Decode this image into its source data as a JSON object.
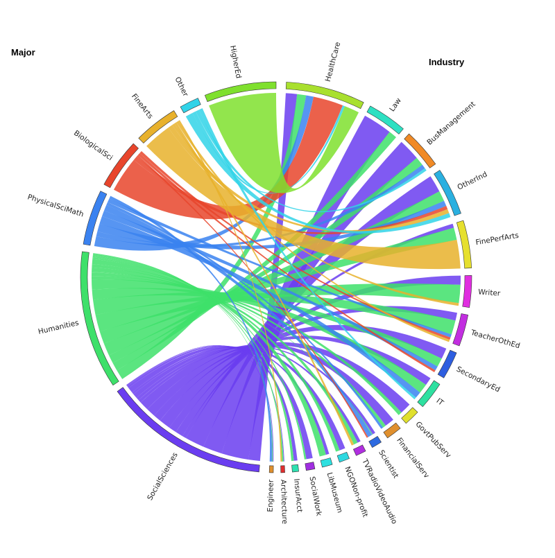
{
  "chart_data": {
    "type": "chord",
    "group_titles": {
      "left": "Major",
      "right": "Industry"
    },
    "majors": [
      {
        "name": "SocialSciences",
        "color": "#6a3df0",
        "size": 30
      },
      {
        "name": "Humanities",
        "color": "#3ee06a",
        "size": 25
      },
      {
        "name": "PhysicalSciMath",
        "color": "#3a82f0",
        "size": 10
      },
      {
        "name": "BiologicalSci",
        "color": "#e8452c",
        "size": 9
      },
      {
        "name": "FineArts",
        "color": "#e8b12c",
        "size": 8
      },
      {
        "name": "Other",
        "color": "#31d3e8",
        "size": 3.5
      },
      {
        "name": "HigherEd",
        "color": "#7fe02e",
        "size": 13
      }
    ],
    "industries": [
      {
        "name": "HealthCare",
        "color": "#a9e02e",
        "size": 10
      },
      {
        "name": "Law",
        "color": "#2ee0c2",
        "size": 5
      },
      {
        "name": "BusManagement",
        "color": "#f08a26",
        "size": 5
      },
      {
        "name": "OtherInd",
        "color": "#2ab0e0",
        "size": 6
      },
      {
        "name": "FinePerfArts",
        "color": "#e6e02e",
        "size": 6
      },
      {
        "name": "Writer",
        "color": "#e02ee0",
        "size": 4
      },
      {
        "name": "TeacherOthEd",
        "color": "#c22ee0",
        "size": 4
      },
      {
        "name": "SecondaryEd",
        "color": "#2e5ee0",
        "size": 3.5
      },
      {
        "name": "IT",
        "color": "#2ee0a0",
        "size": 3.5
      },
      {
        "name": "GovtPubServ",
        "color": "#e0e02e",
        "size": 2
      },
      {
        "name": "FinancialServ",
        "color": "#e0902e",
        "size": 2
      },
      {
        "name": "Scientist",
        "color": "#2e6ae0",
        "size": 1.3
      },
      {
        "name": "TVRadioVideoAudio",
        "color": "#b02ee0",
        "size": 1.3
      },
      {
        "name": "NGONon-profit",
        "color": "#2ed8e0",
        "size": 1.3
      },
      {
        "name": "LibMuseum",
        "color": "#2ee0e0",
        "size": 1.3
      },
      {
        "name": "SocialWork",
        "color": "#a02ee0",
        "size": 1.1
      },
      {
        "name": "InsurAcct",
        "color": "#2ee0b0",
        "size": 0.8
      },
      {
        "name": "Architecture",
        "color": "#e02e2e",
        "size": 0.5
      },
      {
        "name": "Engineer",
        "color": "#e0902e",
        "size": 0.5
      }
    ],
    "flows": [
      [
        "SocialSciences",
        "HealthCare",
        1.5
      ],
      [
        "SocialSciences",
        "Law",
        3.5
      ],
      [
        "SocialSciences",
        "BusManagement",
        2.5
      ],
      [
        "SocialSciences",
        "OtherInd",
        2.5
      ],
      [
        "SocialSciences",
        "FinePerfArts",
        0.5
      ],
      [
        "SocialSciences",
        "Writer",
        1
      ],
      [
        "SocialSciences",
        "TeacherOthEd",
        1
      ],
      [
        "SocialSciences",
        "SecondaryEd",
        1.5
      ],
      [
        "SocialSciences",
        "IT",
        1
      ],
      [
        "SocialSciences",
        "GovtPubServ",
        1.2
      ],
      [
        "SocialSciences",
        "FinancialServ",
        1.2
      ],
      [
        "SocialSciences",
        "Scientist",
        0.4
      ],
      [
        "SocialSciences",
        "TVRadioVideoAudio",
        0.4
      ],
      [
        "SocialSciences",
        "NGONon-profit",
        0.6
      ],
      [
        "SocialSciences",
        "LibMuseum",
        0.3
      ],
      [
        "SocialSciences",
        "SocialWork",
        0.7
      ],
      [
        "SocialSciences",
        "InsurAcct",
        0.3
      ],
      [
        "SocialSciences",
        "Architecture",
        0.1
      ],
      [
        "SocialSciences",
        "Engineer",
        0.1
      ],
      [
        "Humanities",
        "HealthCare",
        1.2
      ],
      [
        "Humanities",
        "Law",
        1
      ],
      [
        "Humanities",
        "BusManagement",
        1
      ],
      [
        "Humanities",
        "OtherInd",
        1.5
      ],
      [
        "Humanities",
        "FinePerfArts",
        1.5
      ],
      [
        "Humanities",
        "Writer",
        2
      ],
      [
        "Humanities",
        "TeacherOthEd",
        1.8
      ],
      [
        "Humanities",
        "SecondaryEd",
        1.2
      ],
      [
        "Humanities",
        "IT",
        1.2
      ],
      [
        "Humanities",
        "GovtPubServ",
        0.4
      ],
      [
        "Humanities",
        "FinancialServ",
        0.4
      ],
      [
        "Humanities",
        "Scientist",
        0.1
      ],
      [
        "Humanities",
        "TVRadioVideoAudio",
        0.5
      ],
      [
        "Humanities",
        "NGONon-profit",
        0.4
      ],
      [
        "Humanities",
        "LibMuseum",
        0.6
      ],
      [
        "Humanities",
        "SocialWork",
        0.2
      ],
      [
        "Humanities",
        "InsurAcct",
        0.2
      ],
      [
        "Humanities",
        "Architecture",
        0.2
      ],
      [
        "Humanities",
        "Engineer",
        0.1
      ],
      [
        "PhysicalSciMath",
        "HealthCare",
        1
      ],
      [
        "PhysicalSciMath",
        "BusManagement",
        0.5
      ],
      [
        "PhysicalSciMath",
        "OtherInd",
        0.8
      ],
      [
        "PhysicalSciMath",
        "IT",
        0.8
      ],
      [
        "PhysicalSciMath",
        "SecondaryEd",
        0.6
      ],
      [
        "PhysicalSciMath",
        "Scientist",
        0.6
      ],
      [
        "PhysicalSciMath",
        "FinancialServ",
        0.3
      ],
      [
        "PhysicalSciMath",
        "TeacherOthEd",
        0.4
      ],
      [
        "PhysicalSciMath",
        "Engineer",
        0.3
      ],
      [
        "BiologicalSci",
        "HealthCare",
        4
      ],
      [
        "BiologicalSci",
        "OtherInd",
        0.5
      ],
      [
        "BiologicalSci",
        "Scientist",
        0.2
      ],
      [
        "BiologicalSci",
        "SecondaryEd",
        0.3
      ],
      [
        "BiologicalSci",
        "TeacherOthEd",
        0.3
      ],
      [
        "FineArts",
        "FinePerfArts",
        3.5
      ],
      [
        "FineArts",
        "OtherInd",
        0.6
      ],
      [
        "FineArts",
        "Writer",
        0.3
      ],
      [
        "FineArts",
        "TVRadioVideoAudio",
        0.3
      ],
      [
        "FineArts",
        "TeacherOthEd",
        0.3
      ],
      [
        "FineArts",
        "Architecture",
        0.2
      ],
      [
        "Other",
        "OtherInd",
        0.6
      ],
      [
        "Other",
        "HealthCare",
        0.3
      ],
      [
        "Other",
        "BusManagement",
        0.3
      ],
      [
        "Other",
        "IT",
        0.3
      ],
      [
        "HigherEd",
        "HealthCare",
        2
      ]
    ]
  }
}
